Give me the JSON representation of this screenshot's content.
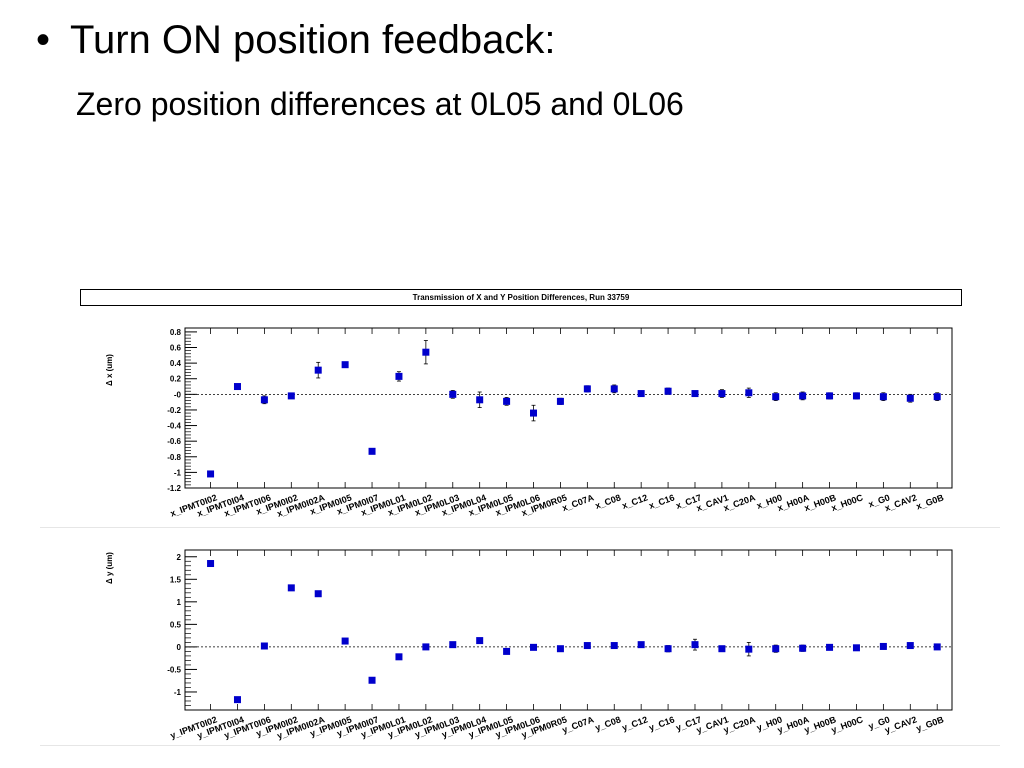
{
  "slide": {
    "bullet": "•",
    "heading": "Turn ON position feedback:",
    "subheading": "Zero position differences at 0L05 and 0L06"
  },
  "chart_title": "Transmission of X and Y Position Differences, Run 33759",
  "chart_data": [
    {
      "type": "scatter",
      "ylabel": "Δ x (um)",
      "ylim": [
        -1.2,
        0.85
      ],
      "yticks": [
        "0.8",
        "0.6",
        "0.4",
        "0.2",
        "-0",
        "-0.2",
        "-0.4",
        "-0.6",
        "-0.8",
        "-1",
        "-1.2"
      ],
      "ytick_values": [
        0.8,
        0.6,
        0.4,
        0.2,
        0,
        -0.2,
        -0.4,
        -0.6,
        -0.8,
        -1,
        -1.2
      ],
      "zero_line": true,
      "categories": [
        "x_IPMT0I02",
        "x_IPMT0I04",
        "x_IPMT0I06",
        "x_IPM0I02",
        "x_IPM0I02A",
        "x_IPM0I05",
        "x_IPM0I07",
        "x_IPM0L01",
        "x_IPM0L02",
        "x_IPM0L03",
        "x_IPM0L04",
        "x_IPM0L05",
        "x_IPM0L06",
        "x_IPM0R05",
        "x_C07A",
        "x_C08",
        "x_C12",
        "x_C16",
        "x_C17",
        "x_CAV1",
        "x_C20A",
        "x_H00",
        "x_H00A",
        "x_H00B",
        "x_H00C",
        "x_G0",
        "x_CAV2",
        "x_G0B"
      ],
      "values": [
        -1.02,
        0.1,
        -0.07,
        -0.02,
        0.31,
        0.38,
        -0.73,
        0.23,
        0.54,
        0.0,
        -0.07,
        -0.09,
        -0.24,
        -0.09,
        0.07,
        0.07,
        0.01,
        0.04,
        0.01,
        0.01,
        0.02,
        -0.03,
        -0.02,
        -0.02,
        -0.02,
        -0.03,
        -0.05,
        -0.03
      ],
      "errors": [
        0.0,
        0.03,
        0.05,
        0.0,
        0.1,
        0.0,
        0.0,
        0.06,
        0.15,
        0.05,
        0.1,
        0.05,
        0.1,
        0.04,
        0.04,
        0.05,
        0.03,
        0.04,
        0.0,
        0.05,
        0.06,
        0.05,
        0.05,
        0.04,
        0.04,
        0.05,
        0.05,
        0.05
      ],
      "tick_labels": [
        "x_IPMT0I02",
        "x_IPMT0I04",
        "x_IPMT0I06",
        "x_IPM0I02",
        "x_IPM0I02A",
        "x_IPM0I05",
        "x_IPM0I07",
        "x_IPM0L01",
        "x_IPM0L02",
        "x_IPM0L03",
        "x_IPM0L04",
        "x_IPM0L05",
        "x_IPM0L06",
        "x_IPM0R05",
        "x_C07A",
        "x_C08",
        "x_C12",
        "x_C16",
        "x_C17",
        "x_CAV1",
        "x_C20A",
        "x_H00",
        "x_H00A",
        "x_H00B",
        "x_H00C",
        "x_G0",
        "x_CAV2",
        "x_G0B"
      ],
      "marker_color": "#0000cc"
    },
    {
      "type": "scatter",
      "ylabel": "Δ y (um)",
      "ylim": [
        -1.4,
        2.15
      ],
      "yticks": [
        "2",
        "1.5",
        "1",
        "0.5",
        "0",
        "-0.5",
        "-1"
      ],
      "ytick_values": [
        2,
        1.5,
        1,
        0.5,
        0,
        -0.5,
        -1
      ],
      "zero_line": true,
      "categories": [
        "y_IPMT0I02",
        "y_IPMT0I04",
        "y_IPMT0I06",
        "y_IPM0I02",
        "y_IPM0I02A",
        "y_IPM0I05",
        "y_IPM0I07",
        "y_IPM0L01",
        "y_IPM0L02",
        "y_IPM0L03",
        "y_IPM0L04",
        "y_IPM0L05",
        "y_IPM0L06",
        "y_IPM0R05",
        "y_C07A",
        "y_C08",
        "y_C12",
        "y_C16",
        "y_C17",
        "y_CAV1",
        "y_C20A",
        "y_H00",
        "y_H00A",
        "y_H00B",
        "y_H00C",
        "y_G0",
        "y_CAV2",
        "y_G0B"
      ],
      "values": [
        1.85,
        -1.17,
        0.02,
        1.31,
        1.18,
        0.13,
        -0.74,
        -0.22,
        0.0,
        0.05,
        0.14,
        -0.1,
        -0.01,
        -0.04,
        0.03,
        0.03,
        0.05,
        -0.04,
        0.05,
        -0.04,
        -0.05,
        -0.04,
        -0.03,
        -0.01,
        -0.02,
        0.01,
        0.03,
        0.0
      ],
      "errors": [
        0.0,
        0.0,
        0.0,
        0.0,
        0.0,
        0.0,
        0.0,
        0.0,
        0.0,
        0.0,
        0.0,
        0.05,
        0.0,
        0.0,
        0.0,
        0.0,
        0.0,
        0.07,
        0.12,
        0.0,
        0.15,
        0.08,
        0.07,
        0.05,
        0.05,
        0.0,
        0.0,
        0.0
      ],
      "tick_labels": [
        "y_IPMT0I02",
        "y_IPMT0I04",
        "y_IPMT0I06",
        "y_IPM0I02",
        "y_IPM0I02A",
        "y_IPM0I05",
        "y_IPM0I07",
        "y_IPM0L01",
        "y_IPM0L02",
        "y_IPM0L03",
        "y_IPM0L04",
        "y_IPM0L05",
        "y_IPM0L06",
        "y_IPM0R05",
        "y_C07A",
        "y_C08",
        "y_C12",
        "y_C16",
        "y_C17",
        "y_CAV1",
        "y_C20A",
        "y_H00",
        "y_H00A",
        "y_H00B",
        "y_H00C",
        "y_G0",
        "y_CAV2",
        "y_G0B"
      ],
      "marker_color": "#0000cc"
    }
  ]
}
